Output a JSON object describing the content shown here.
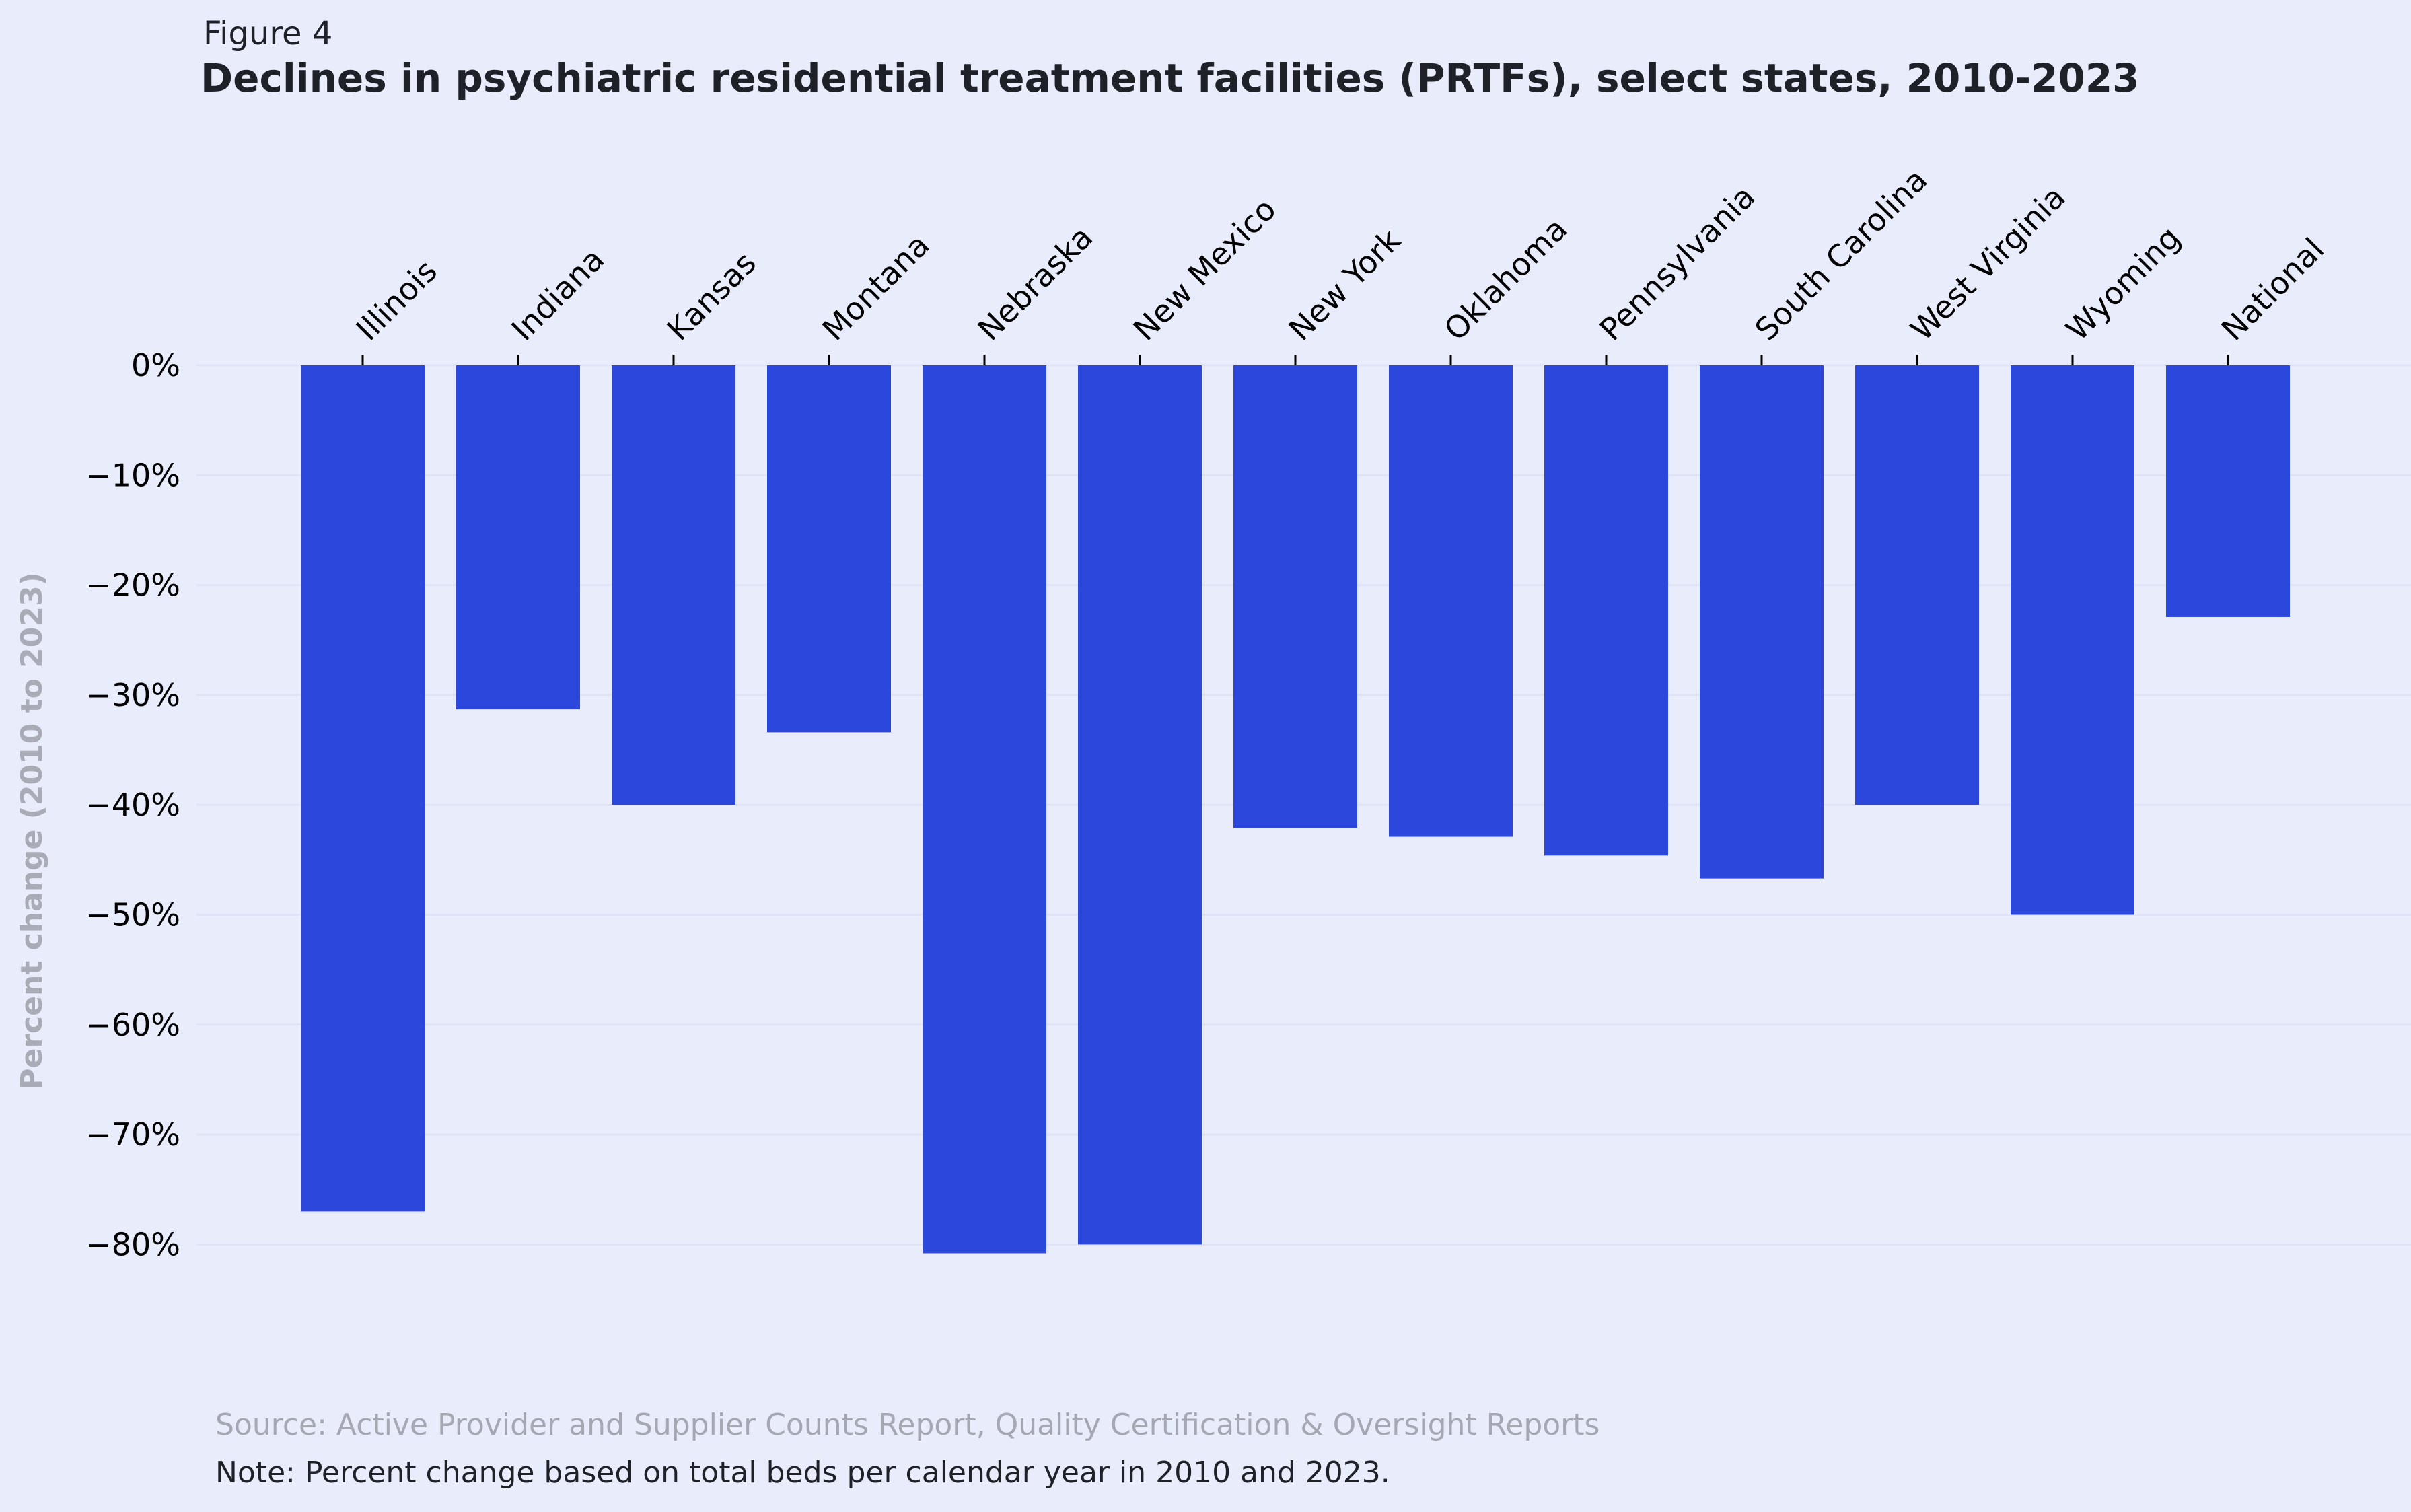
{
  "figure_label": "Figure 4",
  "title": "Declines in psychiatric residential treatment facilities (PRTFs), select states, 2010-2023",
  "source": "Source: Active Provider and Supplier Counts Report, Quality Certification & Oversight Reports",
  "note": "Note: Percent change based on total beds per calendar year in 2010 and 2023.",
  "colors": {
    "background": "#e9ecfb",
    "bar": "#2c48dc",
    "grid": "#dfe3f5",
    "ylabel": "#a9abb6",
    "text": "#000000"
  },
  "chart_data": {
    "type": "bar",
    "title": "Declines in psychiatric residential treatment facilities (PRTFs), select states, 2010-2023",
    "xlabel": "",
    "ylabel": "Percent change (2010 to 2023)",
    "categories": [
      "Illinois",
      "Indiana",
      "Kansas",
      "Montana",
      "Nebraska",
      "New Mexico",
      "New York",
      "Oklahoma",
      "Pennsylvania",
      "South Carolina",
      "West Virginia",
      "Wyoming",
      "National"
    ],
    "values": [
      -77,
      -31.3,
      -40,
      -33.4,
      -80.8,
      -80,
      -42.1,
      -42.9,
      -44.6,
      -46.7,
      -40,
      -50,
      -22.9
    ],
    "ylim": [
      -80,
      0
    ],
    "yticks": [
      0,
      -10,
      -20,
      -30,
      -40,
      -50,
      -60,
      -70,
      -80
    ],
    "ytick_labels": [
      "0%",
      "−10%",
      "−20%",
      "−30%",
      "−40%",
      "−50%",
      "−60%",
      "−70%",
      "−80%"
    ],
    "x_axis_position": "top",
    "x_tick_rotation": 45,
    "grid": true,
    "legend": false
  }
}
